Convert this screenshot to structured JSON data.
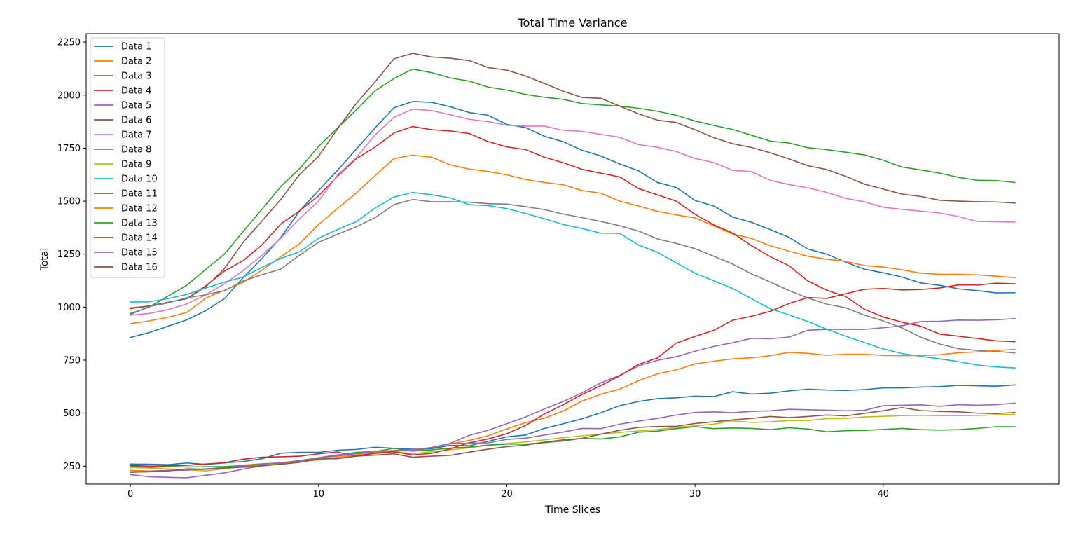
{
  "chart_data": {
    "type": "line",
    "title": "Total Time Variance",
    "xlabel": "Time Slices",
    "ylabel": "Total",
    "xlim": [
      -2.35,
      49.35
    ],
    "ylim": [
      165,
      2290
    ],
    "xticks": [
      0,
      10,
      20,
      30,
      40
    ],
    "yticks": [
      250,
      500,
      750,
      1000,
      1250,
      1500,
      1750,
      2000,
      2250
    ],
    "grid": false,
    "legend_position": "upper-left",
    "x": [
      0,
      1,
      2,
      3,
      4,
      5,
      6,
      7,
      8,
      9,
      10,
      11,
      12,
      13,
      14,
      15,
      16,
      17,
      18,
      19,
      20,
      21,
      22,
      23,
      24,
      25,
      26,
      27,
      28,
      29,
      30,
      31,
      32,
      33,
      34,
      35,
      36,
      37,
      38,
      39,
      40,
      41,
      42,
      43,
      44,
      45,
      46,
      47
    ],
    "series": [
      {
        "name": "Data 1",
        "color": "#1f77b4",
        "values": [
          857,
          880,
          910,
          940,
          983,
          1040,
          1140,
          1230,
          1330,
          1455,
          1550,
          1645,
          1745,
          1845,
          1940,
          1970,
          1966,
          1945,
          1918,
          1905,
          1862,
          1847,
          1806,
          1780,
          1740,
          1713,
          1675,
          1643,
          1588,
          1565,
          1503,
          1477,
          1425,
          1400,
          1366,
          1329,
          1274,
          1250,
          1212,
          1179,
          1162,
          1142,
          1114,
          1103,
          1086,
          1078,
          1067,
          1068
        ]
      },
      {
        "name": "Data 2",
        "color": "#ff7f0e",
        "values": [
          922,
          935,
          952,
          975,
          1042,
          1080,
          1117,
          1175,
          1238,
          1300,
          1390,
          1465,
          1538,
          1620,
          1700,
          1717,
          1707,
          1671,
          1651,
          1640,
          1624,
          1602,
          1588,
          1577,
          1550,
          1537,
          1500,
          1477,
          1452,
          1435,
          1421,
          1383,
          1345,
          1324,
          1290,
          1264,
          1240,
          1226,
          1216,
          1196,
          1189,
          1176,
          1160,
          1155,
          1155,
          1152,
          1146,
          1139
        ]
      },
      {
        "name": "Data 3",
        "color": "#2ca02c",
        "values": [
          970,
          1000,
          1052,
          1103,
          1178,
          1250,
          1358,
          1462,
          1570,
          1654,
          1758,
          1845,
          1930,
          2020,
          2078,
          2123,
          2106,
          2081,
          2066,
          2038,
          2024,
          2003,
          1990,
          1980,
          1960,
          1954,
          1948,
          1938,
          1924,
          1905,
          1878,
          1857,
          1838,
          1811,
          1783,
          1774,
          1752,
          1743,
          1731,
          1718,
          1693,
          1661,
          1647,
          1632,
          1612,
          1598,
          1597,
          1588
        ]
      },
      {
        "name": "Data 4",
        "color": "#d62728",
        "values": [
          993,
          1005,
          1022,
          1040,
          1100,
          1170,
          1220,
          1294,
          1393,
          1455,
          1525,
          1617,
          1700,
          1755,
          1821,
          1852,
          1837,
          1831,
          1819,
          1781,
          1756,
          1743,
          1707,
          1681,
          1650,
          1632,
          1614,
          1559,
          1530,
          1500,
          1438,
          1388,
          1350,
          1290,
          1238,
          1195,
          1123,
          1080,
          1050,
          990,
          953,
          929,
          910,
          873,
          863,
          852,
          841,
          837
        ]
      },
      {
        "name": "Data 5",
        "color": "#9467bd",
        "values": [
          210,
          200,
          197,
          195,
          207,
          218,
          236,
          252,
          264,
          276,
          289,
          298,
          309,
          314,
          322,
          322,
          336,
          358,
          395,
          419,
          450,
          482,
          520,
          555,
          596,
          643,
          678,
          723,
          749,
          766,
          792,
          815,
          832,
          853,
          851,
          859,
          891,
          895,
          895,
          895,
          903,
          912,
          932,
          933,
          939,
          938,
          940,
          946
        ]
      },
      {
        "name": "Data 6",
        "color": "#8c564b",
        "values": [
          996,
          1005,
          1023,
          1040,
          1095,
          1182,
          1307,
          1407,
          1509,
          1627,
          1712,
          1840,
          1960,
          2062,
          2171,
          2197,
          2180,
          2174,
          2163,
          2130,
          2118,
          2090,
          2055,
          2018,
          1989,
          1985,
          1948,
          1912,
          1882,
          1871,
          1837,
          1799,
          1771,
          1753,
          1728,
          1699,
          1667,
          1649,
          1617,
          1580,
          1557,
          1533,
          1522,
          1504,
          1500,
          1497,
          1496,
          1491
        ]
      },
      {
        "name": "Data 7",
        "color": "#e377c2",
        "values": [
          962,
          970,
          988,
          1015,
          1058,
          1110,
          1173,
          1245,
          1326,
          1418,
          1500,
          1622,
          1705,
          1812,
          1895,
          1934,
          1927,
          1907,
          1886,
          1875,
          1858,
          1854,
          1854,
          1834,
          1829,
          1815,
          1801,
          1767,
          1754,
          1734,
          1701,
          1682,
          1645,
          1639,
          1598,
          1578,
          1562,
          1541,
          1513,
          1497,
          1471,
          1461,
          1453,
          1444,
          1427,
          1404,
          1403,
          1401
        ]
      },
      {
        "name": "Data 8",
        "color": "#7f7f7f",
        "values": [
          965,
          1003,
          1020,
          1044,
          1058,
          1078,
          1124,
          1153,
          1180,
          1246,
          1306,
          1343,
          1379,
          1422,
          1483,
          1508,
          1497,
          1497,
          1495,
          1488,
          1486,
          1474,
          1460,
          1439,
          1422,
          1404,
          1384,
          1359,
          1322,
          1301,
          1276,
          1240,
          1203,
          1157,
          1118,
          1078,
          1043,
          1014,
          997,
          962,
          935,
          902,
          858,
          826,
          804,
          796,
          791,
          784
        ]
      },
      {
        "name": "Data 9",
        "color": "#bcbd22",
        "values": [
          243,
          241,
          237,
          233,
          227,
          238,
          249,
          256,
          263,
          271,
          282,
          291,
          299,
          309,
          318,
          309,
          318,
          327,
          336,
          349,
          357,
          364,
          374,
          384,
          393,
          401,
          409,
          416,
          422,
          433,
          440,
          448,
          464,
          456,
          459,
          465,
          465,
          474,
          475,
          482,
          485,
          488,
          490,
          488,
          488,
          489,
          492,
          494
        ]
      },
      {
        "name": "Data 10",
        "color": "#17becf",
        "values": [
          1024,
          1025,
          1040,
          1060,
          1090,
          1118,
          1142,
          1188,
          1230,
          1262,
          1325,
          1366,
          1403,
          1467,
          1519,
          1541,
          1530,
          1515,
          1483,
          1479,
          1465,
          1442,
          1417,
          1390,
          1371,
          1349,
          1348,
          1293,
          1259,
          1209,
          1160,
          1124,
          1088,
          1040,
          992,
          963,
          932,
          896,
          863,
          833,
          803,
          781,
          768,
          756,
          743,
          727,
          718,
          713
        ]
      },
      {
        "name": "Data 11",
        "color": "#1f77b4",
        "values": [
          260,
          259,
          257,
          265,
          258,
          265,
          272,
          285,
          311,
          315,
          315,
          325,
          329,
          339,
          334,
          330,
          333,
          348,
          346,
          367,
          388,
          397,
          428,
          450,
          473,
          502,
          535,
          555,
          568,
          572,
          580,
          578,
          601,
          590,
          594,
          605,
          613,
          609,
          607,
          611,
          619,
          619,
          623,
          625,
          631,
          629,
          627,
          633
        ]
      },
      {
        "name": "Data 12",
        "color": "#ff7f0e",
        "values": [
          230,
          227,
          229,
          231,
          235,
          245,
          255,
          261,
          264,
          271,
          279,
          292,
          303,
          315,
          324,
          327,
          338,
          355,
          371,
          393,
          426,
          455,
          476,
          510,
          557,
          589,
          613,
          653,
          685,
          704,
          732,
          745,
          756,
          761,
          771,
          787,
          782,
          773,
          778,
          778,
          772,
          771,
          772,
          775,
          785,
          789,
          795,
          801
        ]
      },
      {
        "name": "Data 13",
        "color": "#2ca02c",
        "values": [
          248,
          245,
          248,
          246,
          247,
          248,
          252,
          260,
          265,
          277,
          288,
          302,
          315,
          319,
          334,
          321,
          327,
          335,
          340,
          349,
          354,
          354,
          361,
          369,
          381,
          378,
          388,
          410,
          415,
          427,
          436,
          427,
          430,
          428,
          422,
          431,
          425,
          412,
          417,
          419,
          423,
          428,
          422,
          420,
          422,
          428,
          436,
          436
        ]
      },
      {
        "name": "Data 14",
        "color": "#d62728",
        "values": [
          253,
          250,
          252,
          254,
          260,
          266,
          283,
          292,
          294,
          297,
          308,
          317,
          297,
          311,
          318,
          303,
          310,
          332,
          360,
          378,
          403,
          442,
          496,
          540,
          588,
          630,
          676,
          730,
          760,
          830,
          862,
          891,
          938,
          957,
          980,
          1017,
          1045,
          1041,
          1063,
          1084,
          1088,
          1081,
          1083,
          1090,
          1105,
          1104,
          1113,
          1110
        ]
      },
      {
        "name": "Data 15",
        "color": "#9467bd",
        "values": [
          223,
          226,
          230,
          231,
          237,
          242,
          250,
          258,
          267,
          274,
          290,
          303,
          310,
          320,
          323,
          325,
          338,
          356,
          358,
          360,
          376,
          382,
          397,
          411,
          428,
          427,
          448,
          462,
          475,
          491,
          503,
          506,
          502,
          508,
          511,
          518,
          516,
          514,
          511,
          513,
          535,
          537,
          539,
          532,
          540,
          537,
          540,
          547
        ]
      },
      {
        "name": "Data 16",
        "color": "#8c564b",
        "values": [
          221,
          223,
          227,
          237,
          235,
          241,
          245,
          251,
          259,
          268,
          284,
          285,
          297,
          302,
          308,
          292,
          297,
          301,
          316,
          330,
          342,
          349,
          363,
          374,
          381,
          401,
          419,
          433,
          437,
          438,
          451,
          459,
          468,
          475,
          484,
          479,
          484,
          491,
          487,
          499,
          511,
          526,
          512,
          508,
          506,
          500,
          498,
          503
        ]
      }
    ]
  }
}
